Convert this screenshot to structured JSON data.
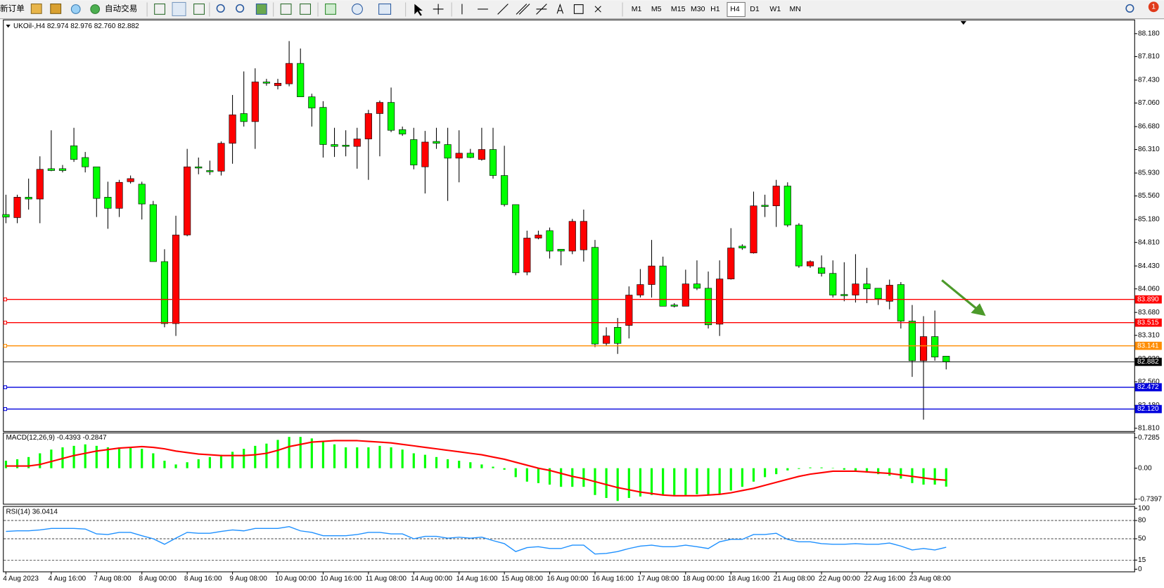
{
  "toolbar": {
    "new_order": "新订单",
    "auto_trading": "自动交易",
    "timeframes": [
      "M1",
      "M5",
      "M15",
      "M30",
      "H1",
      "H4",
      "D1",
      "W1",
      "MN"
    ],
    "active": "H4",
    "notifications": "1"
  },
  "chart_data": [
    {
      "type": "candlestick",
      "title": "UKOil-,H4 82.974 82.976 82.760 82.882",
      "categories": [
        "4 Aug 2023",
        null,
        null,
        null,
        "4 Aug 16:00",
        null,
        null,
        null,
        "7 Aug 08:00",
        null,
        null,
        null,
        "8 Aug 00:00",
        null,
        null,
        null,
        "8 Aug 16:00",
        null,
        null,
        null,
        "9 Aug 08:00",
        null,
        null,
        null,
        "10 Aug 00:00",
        null,
        null,
        null,
        "10 Aug 16:00",
        null,
        null,
        null,
        "11 Aug 08:00",
        null,
        null,
        null,
        "14 Aug 00:00",
        null,
        null,
        null,
        "14 Aug 16:00",
        null,
        null,
        null,
        "15 Aug 08:00",
        null,
        null,
        null,
        "16 Aug 00:00",
        null,
        null,
        null,
        "16 Aug 16:00",
        null,
        null,
        null,
        "17 Aug 08:00",
        null,
        null,
        null,
        "18 Aug 00:00",
        null,
        null,
        null,
        "18 Aug 16:00",
        null,
        null,
        null,
        "21 Aug 08:00",
        null,
        null,
        null,
        "22 Aug 00:00",
        null,
        null,
        null,
        "22 Aug 16:00",
        null,
        null,
        null,
        "23 Aug 08:00",
        null,
        null,
        null
      ],
      "open": [
        85.26,
        85.21,
        85.54,
        85.51,
        86.0,
        86.0,
        86.37,
        86.18,
        86.03,
        85.54,
        85.36,
        85.79,
        85.75,
        85.42,
        84.5,
        83.5,
        84.93,
        86.03,
        85.97,
        85.96,
        86.41,
        86.89,
        86.76,
        87.4,
        87.34,
        87.37,
        87.7,
        87.16,
        86.99,
        86.39,
        86.38,
        86.36,
        86.48,
        86.89,
        87.07,
        86.63,
        86.47,
        86.03,
        86.44,
        86.39,
        86.17,
        86.25,
        86.15,
        86.31,
        85.89,
        85.42,
        84.33,
        84.88,
        85.0,
        84.7,
        84.67,
        84.69,
        84.73,
        83.18,
        83.44,
        83.47,
        83.96,
        84.13,
        84.43,
        83.8,
        83.78,
        84.14,
        84.07,
        83.49,
        84.22,
        84.75,
        84.64,
        85.41,
        85.4,
        85.72,
        85.09,
        84.43,
        84.4,
        84.31,
        83.97,
        83.96,
        84.14,
        84.07,
        83.86,
        84.13,
        83.54,
        82.9,
        83.29,
        82.974
      ],
      "high": [
        85.58,
        85.58,
        85.84,
        86.2,
        86.62,
        86.06,
        86.66,
        86.27,
        86.03,
        85.79,
        85.82,
        85.89,
        85.79,
        85.48,
        84.7,
        85.24,
        86.32,
        86.18,
        86.13,
        86.44,
        87.19,
        87.57,
        87.62,
        87.45,
        87.45,
        88.06,
        87.94,
        87.21,
        87.09,
        86.66,
        86.62,
        86.66,
        86.95,
        87.1,
        87.31,
        86.68,
        86.66,
        86.61,
        86.66,
        86.66,
        86.62,
        86.32,
        86.66,
        86.66,
        86.37,
        85.42,
        85.0,
        85.0,
        85.05,
        84.7,
        85.19,
        85.34,
        84.85,
        83.44,
        83.59,
        84.1,
        84.38,
        84.85,
        84.58,
        83.83,
        84.37,
        84.52,
        84.34,
        84.52,
        85.04,
        84.78,
        85.63,
        85.58,
        85.82,
        85.78,
        85.12,
        84.52,
        84.6,
        84.52,
        84.49,
        84.62,
        84.4,
        84.07,
        84.21,
        84.17,
        83.8,
        83.62,
        83.71,
        82.976
      ],
      "low": [
        85.12,
        85.12,
        85.34,
        85.12,
        85.96,
        85.94,
        86.11,
        85.94,
        85.22,
        85.03,
        85.22,
        85.76,
        85.18,
        84.5,
        83.44,
        83.3,
        84.91,
        85.91,
        85.9,
        85.89,
        86.08,
        86.68,
        86.32,
        87.34,
        87.28,
        87.33,
        87.16,
        86.68,
        86.18,
        86.19,
        86.2,
        86.0,
        85.82,
        86.2,
        86.59,
        86.53,
        85.99,
        85.6,
        86.32,
        85.48,
        85.78,
        86.17,
        86.13,
        85.84,
        85.39,
        84.28,
        84.28,
        84.86,
        84.55,
        84.44,
        84.62,
        84.5,
        83.12,
        83.14,
        83.01,
        83.26,
        83.92,
        83.92,
        83.78,
        83.76,
        83.78,
        84.04,
        83.42,
        83.3,
        84.21,
        84.69,
        84.63,
        85.22,
        85.06,
        85.06,
        84.4,
        84.4,
        84.26,
        83.92,
        83.86,
        83.84,
        83.83,
        83.8,
        83.73,
        83.42,
        82.64,
        81.95,
        82.9,
        82.76
      ],
      "close": [
        85.22,
        85.54,
        85.51,
        85.99,
        85.97,
        85.97,
        86.15,
        86.03,
        85.52,
        85.36,
        85.78,
        85.84,
        85.43,
        84.5,
        83.5,
        84.93,
        86.03,
        86.01,
        85.95,
        86.41,
        86.87,
        86.76,
        87.4,
        87.38,
        87.38,
        87.7,
        87.16,
        86.98,
        86.39,
        86.36,
        86.36,
        86.48,
        86.89,
        87.07,
        86.62,
        86.56,
        86.06,
        86.43,
        86.41,
        86.17,
        86.25,
        86.18,
        86.31,
        85.89,
        85.42,
        84.32,
        84.88,
        84.93,
        84.67,
        84.67,
        85.15,
        85.15,
        83.17,
        83.3,
        83.18,
        83.96,
        84.13,
        84.43,
        83.78,
        83.78,
        84.14,
        84.07,
        83.48,
        84.22,
        84.72,
        84.72,
        85.4,
        85.39,
        85.72,
        85.09,
        84.43,
        84.5,
        84.31,
        83.96,
        83.95,
        84.14,
        84.06,
        83.9,
        84.12,
        83.54,
        82.9,
        83.29,
        82.96,
        82.882
      ],
      "up_color": "#ff0000",
      "down_color": "#00ff00",
      "ylim": [
        81.765,
        88.384
      ],
      "yticks": [
        {
          "value": 88.18,
          "label": "88.180"
        },
        {
          "value": 87.81,
          "label": "87.810"
        },
        {
          "value": 87.43,
          "label": "87.430"
        },
        {
          "value": 87.06,
          "label": "87.060"
        },
        {
          "value": 86.68,
          "label": "86.680"
        },
        {
          "value": 86.31,
          "label": "86.310"
        },
        {
          "value": 85.93,
          "label": "85.930"
        },
        {
          "value": 85.56,
          "label": "85.560"
        },
        {
          "value": 85.18,
          "label": "85.180"
        },
        {
          "value": 84.81,
          "label": "84.810"
        },
        {
          "value": 84.43,
          "label": "84.430"
        },
        {
          "value": 84.06,
          "label": "84.060"
        },
        {
          "value": 83.68,
          "label": "83.680"
        },
        {
          "value": 83.31,
          "label": "83.310"
        },
        {
          "value": 82.93,
          "label": "82.930"
        },
        {
          "value": 82.56,
          "label": "82.560"
        },
        {
          "value": 82.18,
          "label": "82.180"
        },
        {
          "value": 81.81,
          "label": "81.810"
        }
      ],
      "hlines": [
        {
          "value": 83.89,
          "label": "83.890",
          "color": "#ff0000"
        },
        {
          "value": 83.515,
          "label": "83.515",
          "color": "#ff0000"
        },
        {
          "value": 83.141,
          "label": "83.141",
          "color": "#ff8c00"
        },
        {
          "value": 82.882,
          "label": "82.882",
          "color": "#000000"
        },
        {
          "value": 82.472,
          "label": "82.472",
          "color": "#0000dd"
        },
        {
          "value": 82.12,
          "label": "82.120",
          "color": "#0000dd"
        }
      ]
    },
    {
      "type": "macd",
      "title": "MACD(12,26,9) -0.4393 -0.2847",
      "histogram": [
        0.178,
        0.213,
        0.266,
        0.355,
        0.444,
        0.497,
        0.533,
        0.568,
        0.533,
        0.497,
        0.497,
        0.497,
        0.462,
        0.355,
        0.178,
        0.089,
        0.142,
        0.213,
        0.266,
        0.32,
        0.391,
        0.462,
        0.533,
        0.586,
        0.675,
        0.746,
        0.746,
        0.71,
        0.639,
        0.568,
        0.497,
        0.497,
        0.497,
        0.533,
        0.497,
        0.444,
        0.355,
        0.32,
        0.266,
        0.213,
        0.178,
        0.142,
        0.089,
        0.036,
        -0.036,
        -0.213,
        -0.32,
        -0.355,
        -0.391,
        -0.444,
        -0.444,
        -0.444,
        -0.639,
        -0.71,
        -0.781,
        -0.71,
        -0.675,
        -0.639,
        -0.639,
        -0.639,
        -0.639,
        -0.622,
        -0.639,
        -0.622,
        -0.533,
        -0.444,
        -0.32,
        -0.213,
        -0.142,
        -0.053,
        -0.018,
        0.018,
        0.018,
        0.005,
        -0.036,
        -0.071,
        -0.107,
        -0.142,
        -0.178,
        -0.249,
        -0.355,
        -0.391,
        -0.391,
        -0.4393
      ],
      "signal": [
        0.053,
        0.053,
        0.053,
        0.089,
        0.16,
        0.231,
        0.302,
        0.355,
        0.408,
        0.444,
        0.48,
        0.497,
        0.515,
        0.497,
        0.462,
        0.408,
        0.373,
        0.337,
        0.32,
        0.302,
        0.302,
        0.302,
        0.32,
        0.355,
        0.426,
        0.515,
        0.568,
        0.622,
        0.639,
        0.657,
        0.657,
        0.657,
        0.639,
        0.622,
        0.604,
        0.568,
        0.533,
        0.497,
        0.462,
        0.426,
        0.391,
        0.355,
        0.32,
        0.266,
        0.213,
        0.142,
        0.071,
        0.0,
        -0.053,
        -0.124,
        -0.195,
        -0.249,
        -0.32,
        -0.391,
        -0.462,
        -0.515,
        -0.568,
        -0.604,
        -0.639,
        -0.657,
        -0.657,
        -0.657,
        -0.639,
        -0.622,
        -0.586,
        -0.533,
        -0.48,
        -0.408,
        -0.337,
        -0.266,
        -0.195,
        -0.142,
        -0.107,
        -0.071,
        -0.071,
        -0.071,
        -0.089,
        -0.107,
        -0.124,
        -0.16,
        -0.195,
        -0.231,
        -0.266,
        -0.2847
      ],
      "hist_color": "#00ff00",
      "signal_color": "#ff0000",
      "ylim": [
        -0.85,
        0.85
      ],
      "yticks": [
        0.7285,
        {
          "value": 0,
          "label": "0.00"
        },
        -0.7397
      ]
    },
    {
      "type": "line",
      "title": "RSI(14) 36.0414",
      "values": [
        62,
        63,
        63,
        64.5,
        67,
        67,
        67,
        66,
        58,
        57,
        60.5,
        60.5,
        55,
        50,
        41,
        51,
        60.5,
        59,
        59,
        62,
        64.5,
        63,
        67,
        67,
        67,
        70,
        63,
        60.5,
        55,
        55,
        55,
        57,
        60.5,
        60.5,
        58,
        58,
        50,
        54,
        54,
        51,
        52.6,
        51,
        52.6,
        47,
        42,
        29,
        35.5,
        37,
        34,
        34,
        39.5,
        39.5,
        25,
        26,
        29,
        34,
        38,
        39.5,
        37,
        37,
        39.5,
        37,
        34,
        45,
        49,
        49,
        57,
        57,
        59,
        49,
        45,
        45,
        42,
        41,
        41,
        42,
        41,
        41,
        43,
        38,
        31.6,
        34,
        31.6,
        36.0414
      ],
      "color": "#1e90ff",
      "ylim": [
        0,
        100
      ],
      "yticks": [
        100,
        80,
        50,
        15,
        0
      ],
      "grid": "dashed"
    }
  ]
}
